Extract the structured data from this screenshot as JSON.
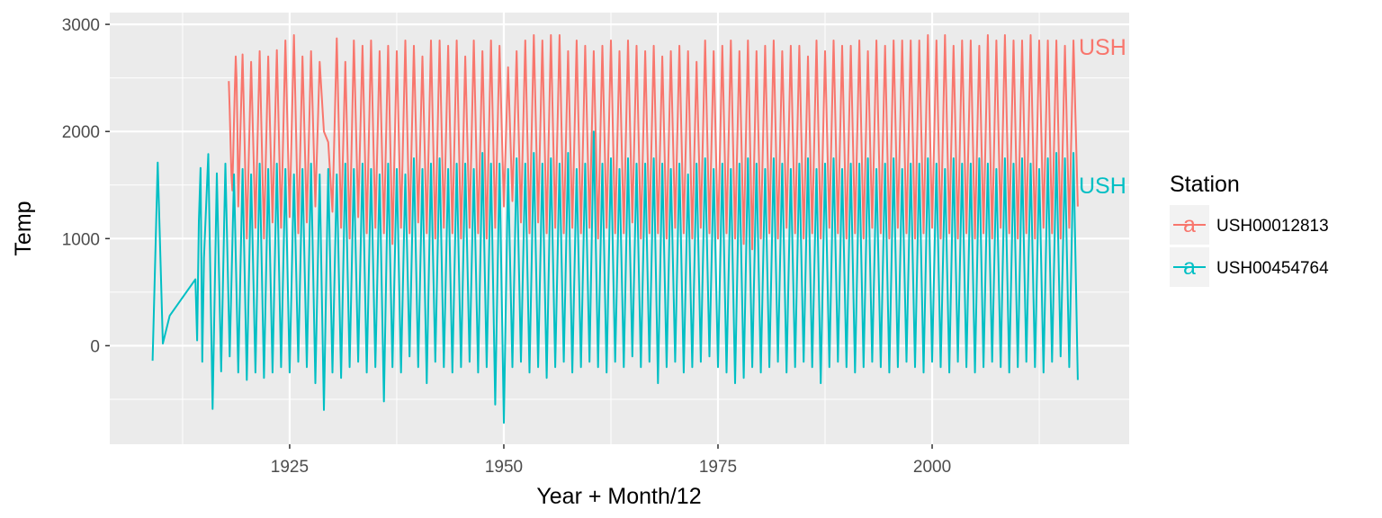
{
  "chart_data": {
    "type": "line",
    "xlabel": "Year + Month/12",
    "ylabel": "Temp",
    "xlim": [
      1904,
      2023
    ],
    "ylim": [
      -920,
      3110
    ],
    "x_ticks": [
      1925,
      1950,
      1975,
      2000
    ],
    "x_tick_labels": [
      "1925",
      "1950",
      "1975",
      "2000"
    ],
    "y_ticks": [
      0,
      1000,
      2000,
      3000
    ],
    "y_tick_labels": [
      "0",
      "1000",
      "2000",
      "3000"
    ],
    "grid": true,
    "legend": {
      "title": "Station",
      "position": "right",
      "key_glyph": "a",
      "entries": [
        "USH00012813",
        "USH00454764"
      ]
    },
    "series": [
      {
        "name": "USH00012813",
        "color": "#F8766D",
        "end_label": "USH",
        "x": [
          1917.9,
          1918.0,
          1918.1,
          1918.2,
          1918.3,
          1918.4,
          1918.5,
          1918.6,
          1918.7,
          1918.8,
          1918.9,
          1919.0,
          1919.5,
          1920.0,
          1920.5,
          1921.0,
          1921.5,
          1922.0,
          1922.5,
          1923.0,
          1923.5,
          1924.0,
          1924.5,
          1925.0,
          1925.5,
          1926.0,
          1926.5,
          1927.0,
          1927.5,
          1928.0,
          1928.5,
          1929.0,
          1929.5,
          1930.0,
          1930.5,
          1931.0,
          1931.5,
          1932.0,
          1932.5,
          1933.0,
          1933.5,
          1934.0,
          1934.5,
          1935.0,
          1935.5,
          1936.0,
          1936.5,
          1937.0,
          1937.5,
          1938.0,
          1938.5,
          1939.0,
          1939.5,
          1940.0,
          1940.5,
          1941.0,
          1941.5,
          1942.0,
          1942.5,
          1943.0,
          1943.5,
          1944.0,
          1944.5,
          1945.0,
          1945.5,
          1946.0,
          1946.5,
          1947.0,
          1947.5,
          1948.0,
          1948.5,
          1949.0,
          1949.5,
          1950.0,
          1950.5,
          1951.0,
          1951.5,
          1952.0,
          1952.5,
          1953.0,
          1953.5,
          1954.0,
          1954.5,
          1955.0,
          1955.5,
          1956.0,
          1956.5,
          1957.0,
          1957.5,
          1958.0,
          1958.5,
          1959.0,
          1959.5,
          1960.0,
          1960.5,
          1961.0,
          1961.5,
          1962.0,
          1962.5,
          1963.0,
          1963.5,
          1964.0,
          1964.5,
          1965.0,
          1965.5,
          1966.0,
          1966.5,
          1967.0,
          1967.5,
          1968.0,
          1968.5,
          1969.0,
          1969.5,
          1970.0,
          1970.5,
          1971.0,
          1971.5,
          1972.0,
          1972.5,
          1973.0,
          1973.5,
          1974.0,
          1974.5,
          1975.0,
          1975.5,
          1976.0,
          1976.5,
          1977.0,
          1977.5,
          1978.0,
          1978.5,
          1979.0,
          1979.5,
          1980.0,
          1980.5,
          1981.0,
          1981.5,
          1982.0,
          1982.5,
          1983.0,
          1983.5,
          1984.0,
          1984.5,
          1985.0,
          1985.5,
          1986.0,
          1986.5,
          1987.0,
          1987.5,
          1988.0,
          1988.5,
          1989.0,
          1989.5,
          1990.0,
          1990.5,
          1991.0,
          1991.5,
          1992.0,
          1992.5,
          1993.0,
          1993.5,
          1994.0,
          1994.5,
          1995.0,
          1995.5,
          1996.0,
          1996.5,
          1997.0,
          1997.5,
          1998.0,
          1998.5,
          1999.0,
          1999.5,
          2000.0,
          2000.5,
          2001.0,
          2001.5,
          2002.0,
          2002.5,
          2003.0,
          2003.5,
          2004.0,
          2004.5,
          2005.0,
          2005.5,
          2006.0,
          2006.5,
          2007.0,
          2007.5,
          2008.0,
          2008.5,
          2009.0,
          2009.5,
          2010.0,
          2010.5,
          2011.0,
          2011.5,
          2012.0,
          2012.5,
          2013.0,
          2013.5,
          2014.0,
          2014.5,
          2015.0,
          2015.5,
          2016.0,
          2016.5,
          2017.0
        ],
        "y": [
          2470,
          2200,
          1900,
          1600,
          1450,
          1750,
          2100,
          2400,
          2700,
          2500,
          2000,
          1300,
          2720,
          1000,
          2650,
          1100,
          2750,
          1000,
          2700,
          1150,
          2760,
          1100,
          2850,
          1200,
          2900,
          1050,
          2700,
          1150,
          2750,
          1300,
          2650,
          2000,
          1900,
          1250,
          2870,
          1100,
          2650,
          1000,
          2850,
          1200,
          2800,
          1050,
          2850,
          1100,
          2750,
          1050,
          2800,
          950,
          2750,
          1100,
          2850,
          1050,
          2800,
          1150,
          2700,
          1050,
          2850,
          1000,
          2850,
          1100,
          2800,
          1050,
          2850,
          1000,
          2700,
          1100,
          2850,
          1050,
          2750,
          1000,
          2850,
          1100,
          2800,
          1300,
          2600,
          1350,
          2750,
          1150,
          2850,
          1050,
          2900,
          1150,
          2850,
          1050,
          2900,
          1100,
          2900,
          1050,
          2750,
          1100,
          2850,
          1050,
          2800,
          1100,
          2750,
          1000,
          2800,
          1100,
          2850,
          1050,
          2750,
          1050,
          2850,
          1150,
          2800,
          1000,
          2750,
          1050,
          2800,
          1050,
          2700,
          1000,
          2750,
          1100,
          2800,
          1050,
          2750,
          1000,
          2650,
          1100,
          2850,
          1050,
          2750,
          1000,
          2800,
          1050,
          2850,
          1000,
          2750,
          950,
          2850,
          900,
          2750,
          1000,
          2800,
          1050,
          2850,
          1000,
          2750,
          1100,
          2800,
          1050,
          2800,
          1000,
          2700,
          1050,
          2850,
          1000,
          2750,
          1100,
          2850,
          1050,
          2800,
          1000,
          2800,
          1050,
          2850,
          1000,
          2750,
          1100,
          2850,
          1050,
          2800,
          1000,
          2850,
          1100,
          2850,
          1050,
          2850,
          1000,
          2850,
          1050,
          2900,
          1100,
          2850,
          1000,
          2900,
          1050,
          2800,
          1000,
          2850,
          1050,
          2850,
          1000,
          2800,
          1050,
          2900,
          1000,
          2850,
          1100,
          2900,
          1050,
          2850,
          1000,
          2850,
          1050,
          2900,
          1000,
          2850,
          1100,
          2850,
          1050,
          2850,
          1000,
          2800,
          1100,
          2850,
          1300
        ]
      },
      {
        "name": "USH00454764",
        "color": "#00BFC4",
        "end_label": "USH",
        "x": [
          1909.0,
          1909.6,
          1910.2,
          1911.0,
          1914.0,
          1914.2,
          1914.4,
          1914.6,
          1914.8,
          1915.0,
          1915.5,
          1916.0,
          1916.5,
          1917.0,
          1917.5,
          1918.0,
          1918.5,
          1919.0,
          1919.5,
          1920.0,
          1920.5,
          1921.0,
          1921.5,
          1922.0,
          1922.5,
          1923.0,
          1923.5,
          1924.0,
          1924.5,
          1925.0,
          1925.5,
          1926.0,
          1926.5,
          1927.0,
          1927.5,
          1928.0,
          1928.5,
          1929.0,
          1929.5,
          1930.0,
          1930.5,
          1931.0,
          1931.5,
          1932.0,
          1932.5,
          1933.0,
          1933.5,
          1934.0,
          1934.5,
          1935.0,
          1935.5,
          1936.0,
          1936.5,
          1937.0,
          1937.5,
          1938.0,
          1938.5,
          1939.0,
          1939.5,
          1940.0,
          1940.5,
          1941.0,
          1941.5,
          1942.0,
          1942.5,
          1943.0,
          1943.5,
          1944.0,
          1944.5,
          1945.0,
          1945.5,
          1946.0,
          1946.5,
          1947.0,
          1947.5,
          1948.0,
          1948.5,
          1949.0,
          1949.5,
          1950.0,
          1950.5,
          1951.0,
          1951.5,
          1952.0,
          1952.5,
          1953.0,
          1953.5,
          1954.0,
          1954.5,
          1955.0,
          1955.5,
          1956.0,
          1956.5,
          1957.0,
          1957.5,
          1958.0,
          1958.5,
          1959.0,
          1959.5,
          1960.0,
          1960.5,
          1961.0,
          1961.5,
          1962.0,
          1962.5,
          1963.0,
          1963.5,
          1964.0,
          1964.5,
          1965.0,
          1965.5,
          1966.0,
          1966.5,
          1967.0,
          1967.5,
          1968.0,
          1968.5,
          1969.0,
          1969.5,
          1970.0,
          1970.5,
          1971.0,
          1971.5,
          1972.0,
          1972.5,
          1973.0,
          1973.5,
          1974.0,
          1974.5,
          1975.0,
          1975.5,
          1976.0,
          1976.5,
          1977.0,
          1977.5,
          1978.0,
          1978.5,
          1979.0,
          1979.5,
          1980.0,
          1980.5,
          1981.0,
          1981.5,
          1982.0,
          1982.5,
          1983.0,
          1983.5,
          1984.0,
          1984.5,
          1985.0,
          1985.5,
          1986.0,
          1986.5,
          1987.0,
          1987.5,
          1988.0,
          1988.5,
          1989.0,
          1989.5,
          1990.0,
          1990.5,
          1991.0,
          1991.5,
          1992.0,
          1992.5,
          1993.0,
          1993.5,
          1994.0,
          1994.5,
          1995.0,
          1995.5,
          1996.0,
          1996.5,
          1997.0,
          1997.5,
          1998.0,
          1998.5,
          1999.0,
          1999.5,
          2000.0,
          2000.5,
          2001.0,
          2001.5,
          2002.0,
          2002.5,
          2003.0,
          2003.5,
          2004.0,
          2004.5,
          2005.0,
          2005.5,
          2006.0,
          2006.5,
          2007.0,
          2007.5,
          2008.0,
          2008.5,
          2009.0,
          2009.5,
          2010.0,
          2010.5,
          2011.0,
          2011.5,
          2012.0,
          2012.5,
          2013.0,
          2013.5,
          2014.0,
          2014.5,
          2015.0,
          2015.5,
          2016.0,
          2016.5,
          2017.0
        ],
        "y": [
          -140,
          1710,
          20,
          280,
          620,
          50,
          1160,
          1660,
          -150,
          820,
          1790,
          -590,
          1610,
          -240,
          1700,
          -100,
          1600,
          -250,
          1650,
          -320,
          1600,
          -250,
          1700,
          -300,
          1650,
          -250,
          1700,
          -200,
          1650,
          -250,
          1600,
          -150,
          1650,
          -200,
          1700,
          -350,
          1600,
          -600,
          1650,
          -250,
          1600,
          -300,
          1700,
          -200,
          1650,
          -150,
          1700,
          -250,
          1650,
          -200,
          1600,
          -520,
          1700,
          -200,
          1650,
          -250,
          1600,
          -100,
          1750,
          -200,
          1650,
          -350,
          1700,
          -150,
          1750,
          -200,
          1650,
          -250,
          1700,
          -200,
          1700,
          -150,
          1650,
          -250,
          1800,
          -200,
          1700,
          -550,
          1700,
          -720,
          1650,
          -200,
          1750,
          -150,
          1700,
          -250,
          1800,
          -200,
          1700,
          -300,
          1750,
          -200,
          1700,
          -150,
          1800,
          -250,
          1650,
          -200,
          1700,
          -150,
          2000,
          -200,
          1700,
          -250,
          1750,
          -150,
          1650,
          -200,
          1750,
          -100,
          1700,
          -200,
          1700,
          -150,
          1750,
          -350,
          1700,
          -200,
          1650,
          -150,
          1700,
          -250,
          1600,
          -200,
          1700,
          -150,
          1750,
          -100,
          1650,
          -200,
          1700,
          -250,
          1650,
          -350,
          1700,
          -300,
          1750,
          -200,
          1700,
          -250,
          1650,
          -200,
          1750,
          -150,
          1700,
          -250,
          1650,
          -200,
          1700,
          -150,
          1750,
          -200,
          1650,
          -350,
          1700,
          -200,
          1750,
          -150,
          1650,
          -200,
          1700,
          -250,
          1700,
          -200,
          1750,
          -150,
          1650,
          -200,
          1700,
          -250,
          1750,
          -200,
          1650,
          -150,
          1700,
          -200,
          1700,
          -250,
          1750,
          -150,
          1700,
          -200,
          1650,
          -250,
          1750,
          -150,
          1700,
          -200,
          1700,
          -250,
          1750,
          -200,
          1700,
          -150,
          1650,
          -200,
          1750,
          -250,
          1700,
          -200,
          1750,
          -150,
          1700,
          -200,
          1650,
          -250,
          1750,
          -150,
          1800,
          -100,
          1750,
          -200,
          1800,
          -320
        ]
      }
    ]
  }
}
